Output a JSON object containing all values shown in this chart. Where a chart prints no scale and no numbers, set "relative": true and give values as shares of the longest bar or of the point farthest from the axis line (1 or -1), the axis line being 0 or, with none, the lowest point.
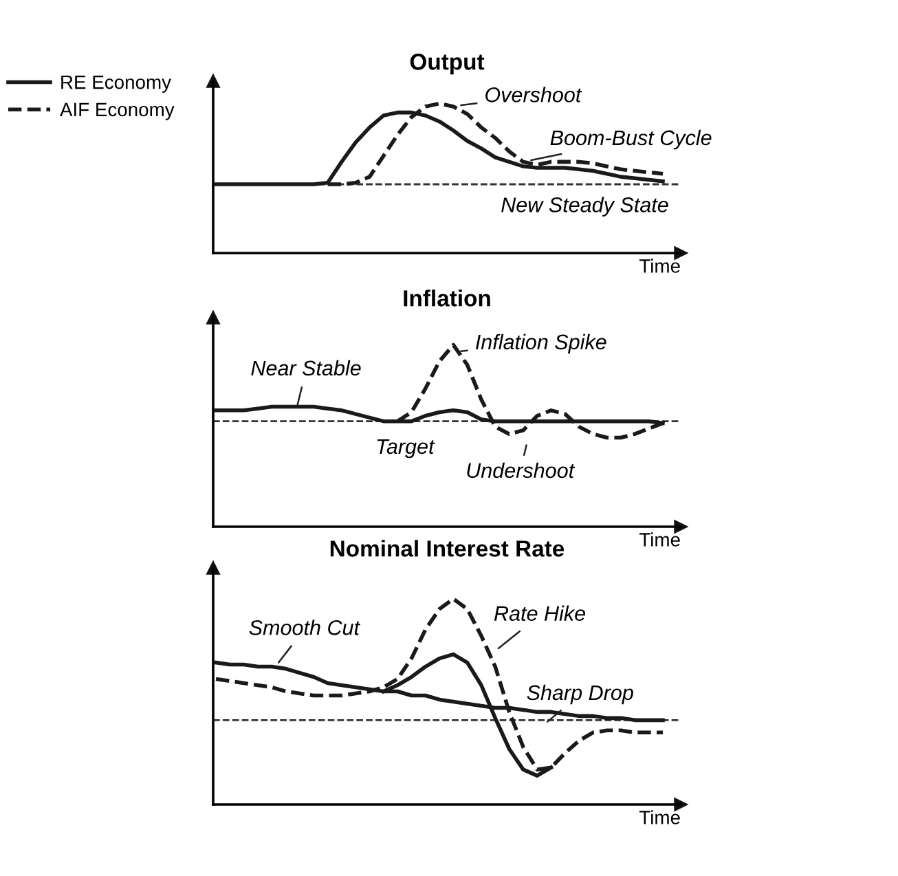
{
  "chart_data": [
    {
      "type": "line",
      "title": "Output",
      "xlabel": "Time",
      "relative": true,
      "tick_labels": false,
      "legend": "top left",
      "marker": "none",
      "categories": [
        null,
        null,
        null,
        null,
        null,
        null,
        null,
        null,
        null,
        null,
        null,
        null,
        null,
        null,
        null,
        null,
        null,
        null,
        null,
        null,
        null,
        null,
        null,
        null,
        null,
        null,
        null,
        null,
        null,
        null,
        null,
        null,
        null
      ],
      "series": [
        {
          "name": "RE Economy",
          "color": "#1a1a1a",
          "line_style": "solid",
          "values": [
            0.46,
            0.46,
            0.46,
            0.46,
            0.46,
            0.46,
            0.46,
            0.46,
            0.47,
            0.61,
            0.74,
            0.84,
            0.92,
            0.94,
            0.94,
            0.92,
            0.88,
            0.82,
            0.75,
            0.7,
            0.64,
            0.61,
            0.58,
            0.57,
            0.57,
            0.57,
            0.56,
            0.55,
            0.53,
            0.51,
            0.5,
            0.49,
            0.48
          ]
        },
        {
          "name": "AIF Economy",
          "color": "#1a1a1a",
          "line_style": "dashed",
          "values": [
            null,
            null,
            null,
            null,
            null,
            null,
            null,
            null,
            0.46,
            0.46,
            0.47,
            0.51,
            0.65,
            0.79,
            0.91,
            0.98,
            1,
            0.98,
            0.93,
            0.84,
            0.77,
            0.68,
            0.61,
            0.59,
            0.61,
            0.61,
            0.61,
            0.6,
            0.58,
            0.56,
            0.55,
            0.54,
            0.53
          ]
        }
      ],
      "ref_lines": [
        {
          "axis": "y",
          "value": 0.46,
          "color": "#333333",
          "line_style": "dashed"
        }
      ],
      "annotations": [
        "Overshoot",
        "Boom-Bust Cycle",
        "New Steady State"
      ]
    },
    {
      "type": "line",
      "title": "Inflation",
      "xlabel": "Time",
      "relative": true,
      "tick_labels": false,
      "marker": "none",
      "categories": [
        null,
        null,
        null,
        null,
        null,
        null,
        null,
        null,
        null,
        null,
        null,
        null,
        null,
        null,
        null,
        null,
        null,
        null,
        null,
        null,
        null,
        null,
        null,
        null,
        null,
        null,
        null,
        null,
        null,
        null,
        null,
        null,
        null
      ],
      "series": [
        {
          "color": "#1a1a1a",
          "line_style": "solid",
          "values": [
            0.64,
            0.64,
            0.64,
            0.65,
            0.66,
            0.66,
            0.66,
            0.66,
            0.65,
            0.64,
            0.62,
            0.6,
            0.58,
            0.58,
            0.58,
            0.61,
            0.63,
            0.64,
            0.63,
            0.59,
            0.58,
            0.58,
            0.58,
            0.58,
            0.58,
            0.58,
            0.58,
            0.58,
            0.58,
            0.58,
            0.58,
            0.58,
            0.57
          ]
        },
        {
          "color": "#1a1a1a",
          "line_style": "dashed",
          "values": [
            null,
            null,
            null,
            null,
            null,
            null,
            null,
            null,
            null,
            null,
            null,
            null,
            null,
            0.58,
            0.63,
            0.76,
            0.91,
            1,
            0.89,
            0.7,
            0.55,
            0.51,
            0.53,
            0.61,
            0.64,
            0.62,
            0.55,
            0.51,
            0.49,
            0.49,
            0.51,
            0.54,
            0.57
          ]
        }
      ],
      "ref_lines": [
        {
          "axis": "y",
          "value": 0.58,
          "color": "#333333",
          "line_style": "dashed"
        }
      ],
      "annotations": [
        "Near Stable",
        "Inflation Spike",
        "Target",
        "Undershoot"
      ]
    },
    {
      "type": "line",
      "title": "Nominal Interest Rate",
      "xlabel": "Time",
      "relative": true,
      "tick_labels": false,
      "marker": "none",
      "categories": [
        null,
        null,
        null,
        null,
        null,
        null,
        null,
        null,
        null,
        null,
        null,
        null,
        null,
        null,
        null,
        null,
        null,
        null,
        null,
        null,
        null,
        null,
        null,
        null,
        null,
        null,
        null,
        null,
        null,
        null,
        null,
        null,
        null
      ],
      "series": [
        {
          "color": "#1a1a1a",
          "line_style": "solid",
          "values": [
            0.69,
            0.68,
            0.68,
            0.67,
            0.67,
            0.66,
            0.64,
            0.62,
            0.59,
            0.58,
            0.57,
            0.56,
            0.55,
            0.55,
            0.53,
            0.53,
            0.51,
            0.5,
            0.49,
            0.48,
            0.47,
            0.47,
            0.46,
            0.45,
            0.45,
            0.44,
            0.43,
            0.43,
            0.42,
            0.42,
            0.41,
            0.41,
            0.41
          ]
        },
        {
          "color": "#1a1a1a",
          "line_style": "solid",
          "values": [
            null,
            null,
            null,
            null,
            null,
            null,
            null,
            null,
            null,
            null,
            null,
            null,
            0.55,
            0.58,
            0.62,
            0.67,
            0.71,
            0.73,
            0.69,
            0.58,
            0.42,
            0.27,
            0.17,
            0.14,
            0.18,
            null,
            null,
            null,
            null,
            null,
            null,
            null,
            null
          ]
        },
        {
          "color": "#1a1a1a",
          "line_style": "dashed",
          "values": [
            0.61,
            0.6,
            0.59,
            0.58,
            0.57,
            0.55,
            0.54,
            0.53,
            0.53,
            0.53,
            0.54,
            0.55,
            0.57,
            0.61,
            0.71,
            0.85,
            0.95,
            1,
            0.95,
            0.82,
            0.67,
            0.45,
            0.28,
            0.17,
            0.18,
            0.25,
            0.31,
            0.35,
            0.36,
            0.36,
            0.35,
            0.35,
            0.35
          ]
        }
      ],
      "ref_lines": [
        {
          "axis": "y",
          "value": 0.41,
          "color": "#333333",
          "line_style": "dashed"
        }
      ],
      "annotations": [
        "Smooth Cut",
        "Rate Hike",
        "Sharp Drop"
      ]
    }
  ]
}
